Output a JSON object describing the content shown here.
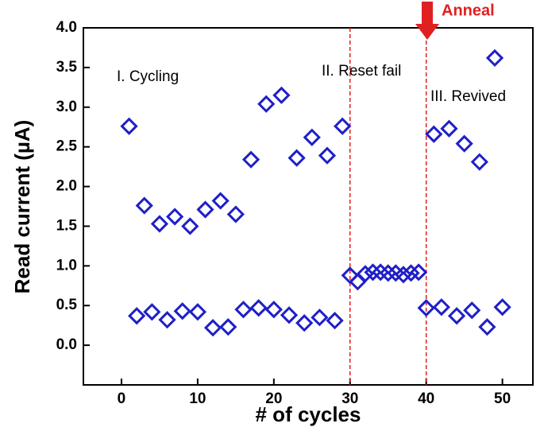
{
  "chart_data": {
    "type": "scatter",
    "x_label": "# of cycles",
    "y_label": "Read current (µA)",
    "annotations": [
      "I. Cycling",
      "II. Reset fail",
      "III. Revived",
      "Anneal"
    ],
    "reference_lines": [
      30,
      40
    ],
    "reference_color": "#e02020",
    "xlim": [
      -5,
      54
    ],
    "ylim": [
      -0.5,
      4.0
    ],
    "xticks": [
      0,
      10,
      20,
      30,
      40,
      50
    ],
    "yticks": [
      {
        "value": 0,
        "label": "0.0"
      },
      0.5,
      {
        "value": 1,
        "label": "1.0"
      },
      1.5,
      {
        "value": 2,
        "label": "2.0"
      },
      2.5,
      {
        "value": 3,
        "label": "3.0"
      },
      3.5,
      {
        "value": 4,
        "label": "4.0"
      }
    ],
    "series": [
      {
        "color": "#1f1fc8",
        "x": [
          1,
          2,
          3,
          4,
          5,
          6,
          7,
          8,
          9,
          10,
          11,
          12,
          13,
          14,
          15,
          16,
          17,
          18,
          19,
          20,
          21,
          22,
          23,
          24,
          25,
          26,
          27,
          28,
          29,
          30,
          31,
          32,
          33,
          34,
          35,
          36,
          37,
          38,
          39,
          40,
          41,
          42,
          43,
          44,
          45,
          46,
          47,
          48,
          49,
          50
        ],
        "values": [
          2.76,
          0.37,
          1.76,
          0.42,
          1.53,
          0.32,
          1.62,
          0.43,
          1.5,
          0.42,
          1.71,
          0.22,
          1.82,
          0.23,
          1.65,
          0.45,
          2.34,
          0.47,
          3.04,
          0.45,
          3.15,
          0.38,
          2.36,
          0.28,
          2.62,
          0.35,
          2.39,
          0.31,
          2.76,
          0.88,
          0.8,
          0.9,
          0.92,
          0.92,
          0.91,
          0.91,
          0.89,
          0.91,
          0.92,
          0.47,
          2.66,
          0.48,
          2.73,
          0.37,
          2.54,
          0.44,
          2.31,
          0.23,
          3.62,
          0.48
        ]
      }
    ]
  }
}
